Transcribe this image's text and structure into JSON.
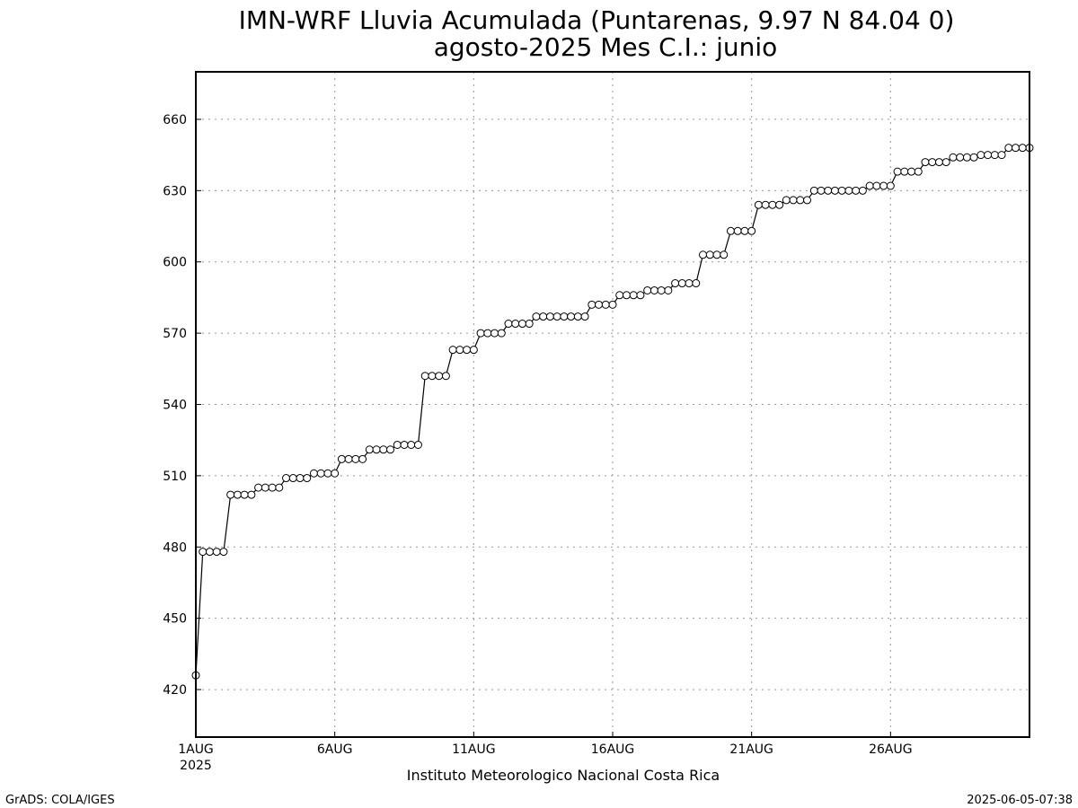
{
  "chart_data": {
    "type": "line",
    "title": "IMN-WRF  Lluvia Acumulada (Puntarenas, 9.97  N 84.04  0)",
    "subtitle": "agosto-2025 Mes C.I.: junio",
    "xlabel": "Instituto Meteorologico Nacional Costa Rica",
    "ylabel": "",
    "xlim": [
      1,
      31
    ],
    "ylim": [
      400,
      680
    ],
    "y_ticks": [
      420,
      450,
      480,
      510,
      540,
      570,
      600,
      630,
      660
    ],
    "x_ticks": [
      {
        "value": 1,
        "label": "1AUG",
        "sublabel": "2025"
      },
      {
        "value": 6,
        "label": "6AUG",
        "sublabel": ""
      },
      {
        "value": 11,
        "label": "11AUG",
        "sublabel": ""
      },
      {
        "value": 16,
        "label": "16AUG",
        "sublabel": ""
      },
      {
        "value": 21,
        "label": "21AUG",
        "sublabel": ""
      },
      {
        "value": 26,
        "label": "26AUG",
        "sublabel": ""
      }
    ],
    "grid": true,
    "line_color": "#000000",
    "marker": "open-circle",
    "series": [
      {
        "x": [
          1,
          1.25,
          1.5,
          1.75,
          2,
          2.25,
          2.5,
          2.75,
          3,
          3.25,
          3.5,
          3.75,
          4,
          4.25,
          4.5,
          4.75,
          5,
          5.25,
          5.5,
          5.75,
          6,
          6.25,
          6.5,
          6.75,
          7,
          7.25,
          7.5,
          7.75,
          8,
          8.25,
          8.5,
          8.75,
          9,
          9.25,
          9.5,
          9.75,
          10,
          10.25,
          10.5,
          10.75,
          11,
          11.25,
          11.5,
          11.75,
          12,
          12.25,
          12.5,
          12.75,
          13,
          13.25,
          13.5,
          13.75,
          14,
          14.25,
          14.5,
          14.75,
          15,
          15.25,
          15.5,
          15.75,
          16,
          16.25,
          16.5,
          16.75,
          17,
          17.25,
          17.5,
          17.75,
          18,
          18.25,
          18.5,
          18.75,
          19,
          19.25,
          19.5,
          19.75,
          20,
          20.25,
          20.5,
          20.75,
          21,
          21.25,
          21.5,
          21.75,
          22,
          22.25,
          22.5,
          22.75,
          23,
          23.25,
          23.5,
          23.75,
          24,
          24.25,
          24.5,
          24.75,
          25,
          25.25,
          25.5,
          25.75,
          26,
          26.25,
          26.5,
          26.75,
          27,
          27.25,
          27.5,
          27.75,
          28,
          28.25,
          28.5,
          28.75,
          29,
          29.25,
          29.5,
          29.75,
          30,
          30.25,
          30.5,
          30.75,
          31
        ],
        "values": [
          426,
          478,
          478,
          478,
          478,
          502,
          502,
          502,
          502,
          505,
          505,
          505,
          505,
          509,
          509,
          509,
          509,
          511,
          511,
          511,
          511,
          517,
          517,
          517,
          517,
          521,
          521,
          521,
          521,
          523,
          523,
          523,
          523,
          552,
          552,
          552,
          552,
          563,
          563,
          563,
          563,
          570,
          570,
          570,
          570,
          574,
          574,
          574,
          574,
          577,
          577,
          577,
          577,
          577,
          577,
          577,
          577,
          582,
          582,
          582,
          582,
          586,
          586,
          586,
          586,
          588,
          588,
          588,
          588,
          591,
          591,
          591,
          591,
          603,
          603,
          603,
          603,
          613,
          613,
          613,
          613,
          624,
          624,
          624,
          624,
          626,
          626,
          626,
          626,
          630,
          630,
          630,
          630,
          630,
          630,
          630,
          630,
          632,
          632,
          632,
          632,
          638,
          638,
          638,
          638,
          642,
          642,
          642,
          642,
          644,
          644,
          644,
          644,
          645,
          645,
          645,
          645,
          648,
          648,
          648,
          648
        ]
      }
    ]
  },
  "footer": {
    "left": "GrADS: COLA/IGES",
    "right": "2025-06-05-07:38"
  }
}
